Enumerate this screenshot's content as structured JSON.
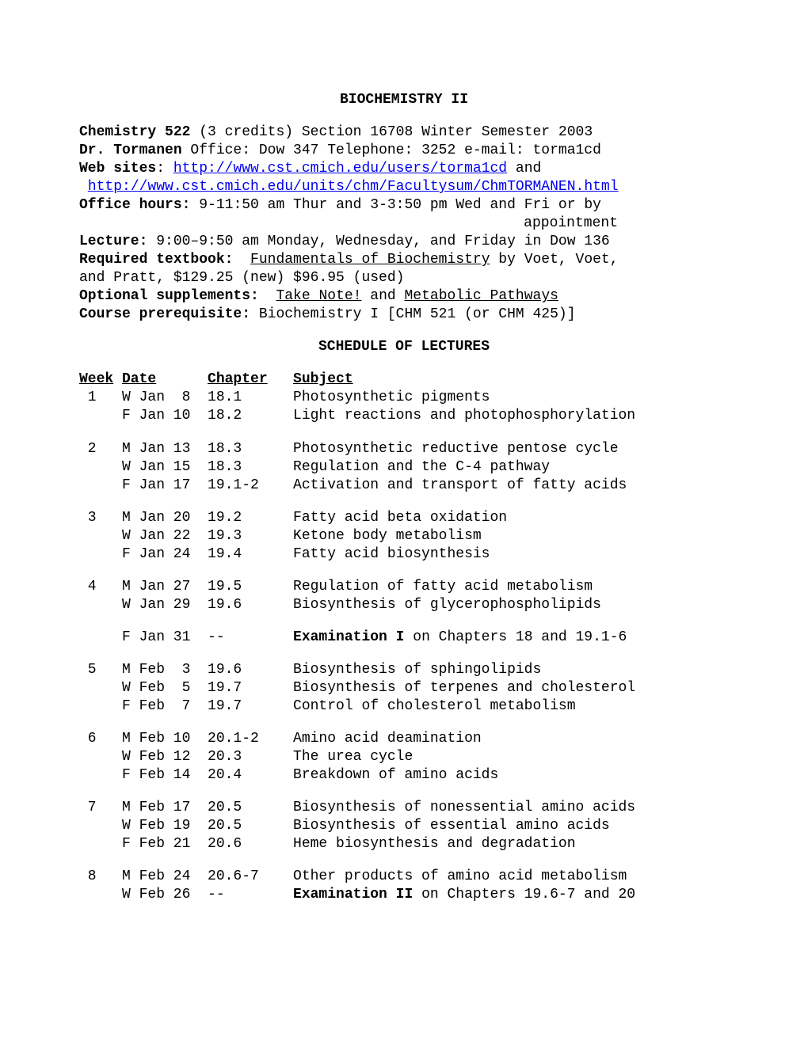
{
  "title": "BIOCHEMISTRY II",
  "course_line": {
    "course_bold": "Chemistry 522",
    "credits": " (3 credits)   Section 16708    Winter Semester 2003"
  },
  "instructor": {
    "name_bold": "Dr. Tormanen",
    "rest": "   Office: Dow 347  Telephone: 3252  e-mail: torma1cd"
  },
  "websites": {
    "label": "Web sites",
    "sep": ": ",
    "link1": "http://www.cst.cmich.edu/users/torma1cd",
    "and": " and",
    "link2": "http://www.cst.cmich.edu/units/chm/Facultysum/ChmTORMANEN.html"
  },
  "office_hours": {
    "label": "Office hours:",
    "text": "  9-11:50 am Thur and 3-3:50 pm Wed and Fri or by",
    "cont": "appointment"
  },
  "lecture": {
    "label": "Lecture:",
    "text": "  9:00–9:50 am Monday, Wednesday, and Friday in Dow 136"
  },
  "textbook": {
    "label": "Required textbook:",
    "title": "Fundamentals of Biochemistry",
    "rest": " by Voet, Voet,",
    "cont": "and Pratt, $129.25 (new) $96.95 (used)"
  },
  "supplements": {
    "label": "Optional supplements:",
    "t1": "Take Note!",
    "and": " and ",
    "t2": "Metabolic Pathways"
  },
  "prereq": {
    "label": "Course prerequisite:",
    "text": "  Biochemistry I [CHM 521 (or CHM 425)]"
  },
  "schedule_title": "SCHEDULE OF LECTURES",
  "schedule_headers": {
    "week": "Week",
    "date": "Date",
    "chapter": "Chapter",
    "subject": "Subject"
  },
  "schedule": [
    {
      "week": " 1",
      "date": "W Jan  8",
      "chap": "18.1",
      "subj": "Photosynthetic pigments"
    },
    {
      "week": "  ",
      "date": "F Jan 10",
      "chap": "18.2",
      "subj": "Light reactions and photophosphorylation"
    },
    {
      "gap": true
    },
    {
      "week": " 2",
      "date": "M Jan 13",
      "chap": "18.3",
      "subj": "Photosynthetic reductive pentose cycle"
    },
    {
      "week": "  ",
      "date": "W Jan 15",
      "chap": "18.3",
      "subj": "Regulation and the C-4 pathway"
    },
    {
      "week": "  ",
      "date": "F Jan 17",
      "chap": "19.1-2",
      "subj": "Activation and transport of fatty acids"
    },
    {
      "gap": true
    },
    {
      "week": " 3",
      "date": "M Jan 20",
      "chap": "19.2",
      "subj": "Fatty acid beta oxidation"
    },
    {
      "week": "  ",
      "date": "W Jan 22",
      "chap": "19.3",
      "subj": "Ketone body metabolism"
    },
    {
      "week": "  ",
      "date": "F Jan 24",
      "chap": "19.4",
      "subj": "Fatty acid biosynthesis"
    },
    {
      "gap": true
    },
    {
      "week": " 4",
      "date": "M Jan 27",
      "chap": "19.5",
      "subj": "Regulation of fatty acid metabolism"
    },
    {
      "week": "  ",
      "date": "W Jan 29",
      "chap": "19.6",
      "subj": "Biosynthesis of glycerophospholipids"
    },
    {
      "gap": true
    },
    {
      "week": "  ",
      "date": "F Jan 31",
      "chap": "--",
      "subj_bold": "Examination I",
      "subj_rest": " on Chapters 18 and 19.1-6"
    },
    {
      "gap": true
    },
    {
      "week": " 5",
      "date": "M Feb  3",
      "chap": "19.6",
      "subj": "Biosynthesis of sphingolipids"
    },
    {
      "week": "  ",
      "date": "W Feb  5",
      "chap": "19.7",
      "subj": "Biosynthesis of terpenes and cholesterol"
    },
    {
      "week": "  ",
      "date": "F Feb  7",
      "chap": "19.7",
      "subj": "Control of cholesterol metabolism"
    },
    {
      "gap": true
    },
    {
      "week": " 6",
      "date": "M Feb 10",
      "chap": "20.1-2",
      "subj": "Amino acid deamination"
    },
    {
      "week": "  ",
      "date": "W Feb 12",
      "chap": "20.3",
      "subj": "The urea cycle"
    },
    {
      "week": "  ",
      "date": "F Feb 14",
      "chap": "20.4",
      "subj": "Breakdown of amino acids"
    },
    {
      "gap": true
    },
    {
      "week": " 7",
      "date": "M Feb 17",
      "chap": "20.5",
      "subj": "Biosynthesis of nonessential amino acids"
    },
    {
      "week": "  ",
      "date": "W Feb 19",
      "chap": "20.5",
      "subj": "Biosynthesis of essential amino acids"
    },
    {
      "week": "  ",
      "date": "F Feb 21",
      "chap": "20.6",
      "subj": "Heme biosynthesis and degradation"
    },
    {
      "gap": true
    },
    {
      "week": " 8",
      "date": "M Feb 24",
      "chap": "20.6-7",
      "subj": "Other products of amino acid metabolism"
    },
    {
      "week": "  ",
      "date": "W Feb 26",
      "chap": "--",
      "subj_bold": "Examination II",
      "subj_rest": " on Chapters 19.6-7 and 20"
    }
  ]
}
